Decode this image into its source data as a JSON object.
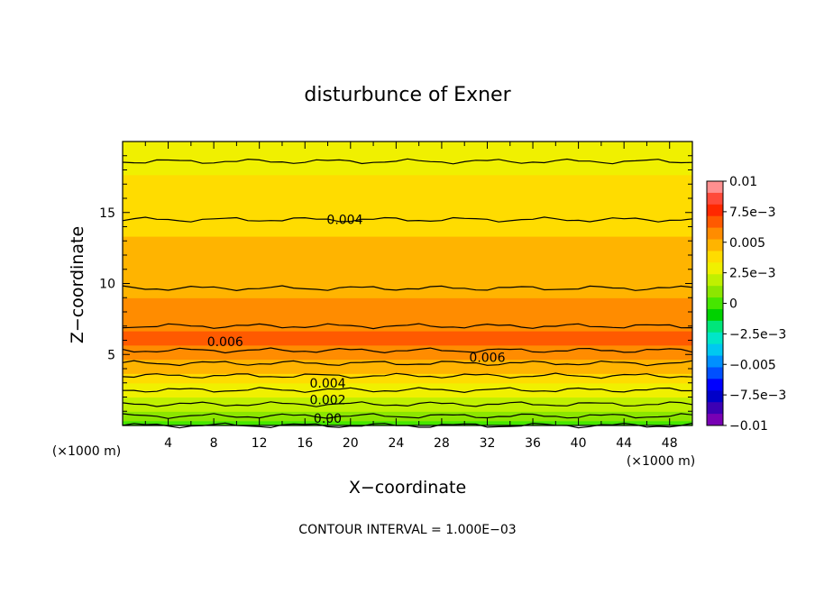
{
  "chart_data": {
    "type": "heatmap",
    "title": "disturbunce of Exner",
    "xlabel": "X−coordinate",
    "ylabel": "Z−coordinate",
    "x_unit": "(×1000 m)",
    "z_unit": "(×1000 m)",
    "xlim": [
      0,
      50
    ],
    "ylim": [
      0,
      20
    ],
    "x_ticks": [
      4,
      8,
      12,
      16,
      20,
      24,
      28,
      32,
      36,
      40,
      44,
      48
    ],
    "y_ticks": [
      5,
      10,
      15
    ],
    "x_tick_labels": [
      "4",
      "8",
      "12",
      "16",
      "20",
      "24",
      "28",
      "32",
      "36",
      "40",
      "44",
      "48"
    ],
    "y_tick_labels": [
      "5",
      "10",
      "15"
    ],
    "colorbar": {
      "range": [
        -0.01,
        0.01
      ],
      "tick_labels": [
        "0.01",
        "7.5e−3",
        "0.005",
        "2.5e−3",
        "0",
        "−2.5e−3",
        "−0.005",
        "−7.5e−3",
        "−0.01"
      ],
      "colors": [
        "#ff9090",
        "#ff4a3a",
        "#ff2800",
        "#ff5a00",
        "#ff8c00",
        "#ffb400",
        "#ffdc00",
        "#f0f000",
        "#c0f000",
        "#8ce600",
        "#46e600",
        "#00d200",
        "#00e67a",
        "#00e6c8",
        "#00c8f0",
        "#0090ff",
        "#0050ff",
        "#0000ff",
        "#0000c8",
        "#3c00b4",
        "#7800b4"
      ]
    },
    "vertical_profile": {
      "z": [
        0,
        1,
        2,
        3,
        4,
        5,
        6,
        7,
        8,
        9,
        10,
        12,
        14,
        16,
        18,
        19,
        20
      ],
      "value": [
        0.0,
        0.0015,
        0.0025,
        0.0035,
        0.0045,
        0.0058,
        0.0065,
        0.006,
        0.0058,
        0.0052,
        0.0049,
        0.0046,
        0.0041,
        0.0037,
        0.0033,
        0.0028,
        0.0026
      ]
    },
    "contour_labels": [
      {
        "text": "0.004",
        "x": 19.5,
        "z": 14.5
      },
      {
        "text": "0.006",
        "x": 9,
        "z": 5.9
      },
      {
        "text": "0.006",
        "x": 32,
        "z": 4.8
      },
      {
        "text": "0.004",
        "x": 18,
        "z": 3.0
      },
      {
        "text": "0.002",
        "x": 18,
        "z": 1.8
      },
      {
        "text": "0.00",
        "x": 18,
        "z": 0.5
      }
    ],
    "footer": "CONTOUR INTERVAL = 1.000E−03"
  }
}
